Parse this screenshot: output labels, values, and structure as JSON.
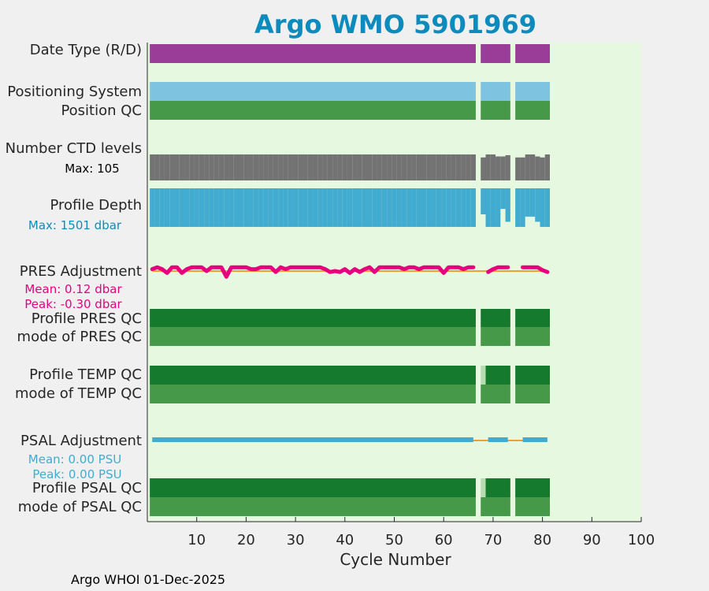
{
  "title": "Argo WMO 5901969",
  "footer": "Argo WHOI 01-Dec-2025",
  "colors": {
    "background": "#e6f9e0",
    "title": "#0d8bbd",
    "data_type": "#993d99",
    "positioning": "#7ec4e0",
    "qc_good": "#47994a",
    "qc_dark": "#157a2e",
    "qc_light": "#b8dcb0",
    "ctd": "#737373",
    "depth": "#42abd0",
    "pres_adj": "#e60080",
    "pres_zero": "#f0a030",
    "psal_adj": "#42abd0"
  },
  "labels": {
    "data_type": "Date Type (R/D)",
    "positioning_system": "Positioning System",
    "position_qc": "Position QC",
    "number_ctd_levels": "Number CTD levels",
    "ctd_max": "Max: 105",
    "profile_depth": "Profile Depth",
    "depth_max": "Max: 1501 dbar",
    "pres_adjustment": "PRES Adjustment",
    "pres_mean": "Mean: 0.12 dbar",
    "pres_peak": "Peak: -0.30 dbar",
    "profile_pres_qc": "Profile PRES QC",
    "mode_pres_qc": "mode of PRES QC",
    "profile_temp_qc": "Profile TEMP QC",
    "mode_temp_qc": "mode of TEMP QC",
    "psal_adjustment": "PSAL Adjustment",
    "psal_mean": "Mean: 0.00 PSU",
    "psal_peak": "Peak: 0.00 PSU",
    "profile_psal_qc": "Profile PSAL QC",
    "mode_psal_qc": "mode of PSAL QC"
  },
  "chart_data": {
    "type": "heatmap",
    "title": "Argo WMO 5901969",
    "xlabel": "Cycle Number",
    "xlim": [
      0,
      100
    ],
    "xticks": [
      10,
      20,
      30,
      40,
      50,
      60,
      70,
      80,
      90,
      100
    ],
    "cycle_segments": [
      [
        1,
        66
      ],
      [
        68,
        73
      ],
      [
        75,
        81
      ]
    ],
    "missing_cycles": [
      67,
      74
    ],
    "rows": {
      "data_type": {
        "color_key": "data_type",
        "segments": [
          [
            1,
            66
          ],
          [
            68,
            73
          ],
          [
            75,
            81
          ]
        ]
      },
      "positioning_system": {
        "color_key": "positioning",
        "segments": [
          [
            1,
            66
          ],
          [
            68,
            73
          ],
          [
            75,
            81
          ]
        ]
      },
      "position_qc": {
        "color_key": "qc_good",
        "segments": [
          [
            1,
            66
          ],
          [
            68,
            73
          ],
          [
            75,
            81
          ]
        ]
      },
      "ctd_levels": {
        "max": 105,
        "cycles": [
          1,
          2,
          3,
          4,
          5,
          6,
          7,
          8,
          9,
          10,
          11,
          12,
          13,
          14,
          15,
          16,
          17,
          18,
          19,
          20,
          21,
          22,
          23,
          24,
          25,
          26,
          27,
          28,
          29,
          30,
          31,
          32,
          33,
          34,
          35,
          36,
          37,
          38,
          39,
          40,
          41,
          42,
          43,
          44,
          45,
          46,
          47,
          48,
          49,
          50,
          51,
          52,
          53,
          54,
          55,
          56,
          57,
          58,
          59,
          60,
          61,
          62,
          63,
          64,
          65,
          66,
          68,
          69,
          70,
          71,
          72,
          73,
          75,
          76,
          77,
          78,
          79,
          80,
          81
        ],
        "values": [
          105,
          105,
          105,
          105,
          105,
          105,
          105,
          105,
          105,
          105,
          105,
          105,
          105,
          105,
          105,
          105,
          105,
          105,
          105,
          105,
          105,
          105,
          105,
          105,
          105,
          105,
          105,
          105,
          105,
          105,
          105,
          105,
          105,
          105,
          105,
          105,
          105,
          105,
          105,
          105,
          105,
          105,
          105,
          105,
          105,
          105,
          105,
          105,
          105,
          105,
          105,
          105,
          105,
          105,
          105,
          105,
          105,
          105,
          105,
          105,
          105,
          105,
          105,
          105,
          105,
          105,
          93,
          105,
          105,
          97,
          97,
          102,
          93,
          93,
          105,
          105,
          97,
          93,
          105
        ]
      },
      "profile_depth": {
        "max_dbar": 1501,
        "cycles": [
          1,
          2,
          3,
          4,
          5,
          6,
          7,
          8,
          9,
          10,
          11,
          12,
          13,
          14,
          15,
          16,
          17,
          18,
          19,
          20,
          21,
          22,
          23,
          24,
          25,
          26,
          27,
          28,
          29,
          30,
          31,
          32,
          33,
          34,
          35,
          36,
          37,
          38,
          39,
          40,
          41,
          42,
          43,
          44,
          45,
          46,
          47,
          48,
          49,
          50,
          51,
          52,
          53,
          54,
          55,
          56,
          57,
          58,
          59,
          60,
          61,
          62,
          63,
          64,
          65,
          66,
          68,
          69,
          70,
          71,
          72,
          73,
          75,
          76,
          77,
          78,
          79,
          80,
          81
        ],
        "values": [
          1500,
          1500,
          1500,
          1500,
          1500,
          1500,
          1500,
          1500,
          1500,
          1500,
          1500,
          1500,
          1500,
          1500,
          1500,
          1500,
          1500,
          1500,
          1500,
          1500,
          1500,
          1500,
          1500,
          1500,
          1500,
          1500,
          1500,
          1500,
          1500,
          1500,
          1500,
          1500,
          1500,
          1501,
          1500,
          1500,
          1500,
          1500,
          1500,
          1500,
          1500,
          1500,
          1500,
          1500,
          1500,
          1500,
          1500,
          1500,
          1500,
          1500,
          1500,
          1500,
          1500,
          1500,
          1500,
          1500,
          1500,
          1500,
          1500,
          1500,
          1500,
          1500,
          1500,
          1500,
          1500,
          1500,
          1010,
          1500,
          1500,
          1500,
          800,
          1300,
          1500,
          1500,
          1100,
          1100,
          1300,
          1500,
          1500
        ]
      },
      "pres_adjustment": {
        "mean": 0.12,
        "peak": -0.3,
        "cycles": [
          1,
          2,
          3,
          4,
          5,
          6,
          7,
          8,
          9,
          10,
          11,
          12,
          13,
          14,
          15,
          16,
          17,
          18,
          19,
          20,
          21,
          22,
          23,
          24,
          25,
          26,
          27,
          28,
          29,
          30,
          31,
          32,
          33,
          34,
          35,
          36,
          37,
          38,
          39,
          40,
          41,
          42,
          43,
          44,
          45,
          46,
          47,
          48,
          49,
          50,
          51,
          52,
          53,
          54,
          55,
          56,
          57,
          58,
          59,
          60,
          61,
          62,
          63,
          64,
          65,
          66,
          69,
          70,
          71,
          72,
          73,
          76,
          77,
          78,
          79,
          80,
          81
        ],
        "values": [
          0.1,
          0.2,
          0.1,
          -0.1,
          0.2,
          0.2,
          -0.1,
          0.1,
          0.2,
          0.2,
          0.2,
          0.0,
          0.2,
          0.2,
          0.2,
          -0.3,
          0.2,
          0.2,
          0.2,
          0.2,
          0.1,
          0.1,
          0.2,
          0.2,
          0.2,
          -0.05,
          0.2,
          0.1,
          0.2,
          0.2,
          0.2,
          0.2,
          0.2,
          0.2,
          0.2,
          0.1,
          -0.05,
          0.0,
          -0.05,
          0.1,
          -0.1,
          0.1,
          -0.05,
          0.1,
          0.2,
          -0.05,
          0.2,
          0.2,
          0.2,
          0.2,
          0.2,
          0.1,
          0.2,
          0.2,
          0.1,
          0.2,
          0.2,
          0.2,
          0.2,
          -0.1,
          0.2,
          0.2,
          0.2,
          0.1,
          0.2,
          0.2,
          -0.05,
          0.1,
          0.2,
          0.2,
          0.2,
          0.2,
          0.2,
          0.2,
          0.2,
          0.05,
          -0.05
        ]
      },
      "profile_pres_qc": {
        "color_key": "qc_dark",
        "segments": [
          [
            1,
            66
          ],
          [
            68,
            73
          ],
          [
            75,
            81
          ]
        ]
      },
      "mode_pres_qc": {
        "color_key": "qc_good",
        "segments": [
          [
            1,
            66
          ],
          [
            68,
            73
          ],
          [
            75,
            81
          ]
        ]
      },
      "profile_temp_qc": {
        "color_key": "qc_dark",
        "segments": [
          [
            1,
            66
          ],
          [
            69,
            73
          ],
          [
            75,
            81
          ]
        ],
        "light_cycles": [
          68
        ]
      },
      "mode_temp_qc": {
        "color_key": "qc_good",
        "segments": [
          [
            1,
            66
          ],
          [
            68,
            73
          ],
          [
            75,
            81
          ]
        ]
      },
      "psal_adjustment": {
        "mean": 0.0,
        "peak": 0.0,
        "segments": [
          [
            1,
            66
          ],
          [
            69,
            73
          ],
          [
            76,
            81
          ]
        ]
      },
      "profile_psal_qc": {
        "color_key": "qc_dark",
        "segments": [
          [
            1,
            66
          ],
          [
            69,
            73
          ],
          [
            75,
            81
          ]
        ],
        "light_cycles": [
          68
        ]
      },
      "mode_psal_qc": {
        "color_key": "qc_good",
        "segments": [
          [
            1,
            66
          ],
          [
            68,
            73
          ],
          [
            75,
            81
          ]
        ]
      }
    }
  }
}
